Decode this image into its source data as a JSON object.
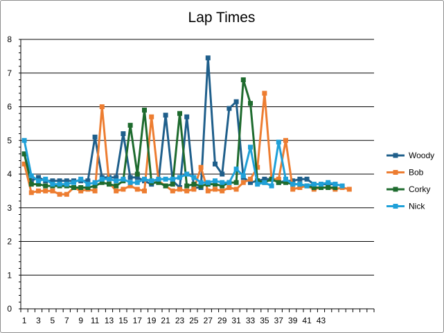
{
  "chart_data": {
    "type": "line",
    "title": "Lap Times",
    "xlabel": "",
    "ylabel": "",
    "ylim": [
      0,
      8
    ],
    "yticks": [
      0,
      1,
      2,
      3,
      4,
      5,
      6,
      7,
      8
    ],
    "x": [
      1,
      2,
      3,
      4,
      5,
      6,
      7,
      8,
      9,
      10,
      11,
      12,
      13,
      14,
      15,
      16,
      17,
      18,
      19,
      20,
      21,
      22,
      23,
      24,
      25,
      26,
      27,
      28,
      29,
      30,
      31,
      32,
      33,
      34,
      35,
      36,
      37,
      38,
      39,
      40,
      41,
      42,
      43,
      44,
      45,
      46,
      47,
      48,
      49,
      50
    ],
    "xtick_labels": [
      "1",
      "3",
      "5",
      "7",
      "9",
      "11",
      "13",
      "15",
      "17",
      "19",
      "21",
      "23",
      "25",
      "27",
      "29",
      "31",
      "33",
      "35",
      "37",
      "39",
      "41",
      "43"
    ],
    "grid": "horizontal",
    "legend_position": "right",
    "series": [
      {
        "name": "Woody",
        "color": "#1f5f8b",
        "values": [
          4.6,
          3.8,
          3.9,
          3.8,
          3.8,
          3.8,
          3.8,
          3.8,
          3.8,
          3.8,
          5.1,
          3.9,
          3.9,
          3.9,
          5.2,
          3.9,
          3.9,
          3.8,
          3.7,
          3.8,
          5.75,
          3.8,
          3.6,
          5.7,
          3.6,
          3.6,
          7.45,
          4.3,
          4.0,
          5.95,
          6.15,
          3.9,
          3.75,
          3.8,
          3.85,
          3.85,
          3.75,
          3.8,
          3.8,
          3.85,
          3.85,
          3.7,
          3.7,
          3.7,
          3.7,
          null,
          null,
          null,
          null,
          null
        ]
      },
      {
        "name": "Bob",
        "color": "#ed7d31",
        "values": [
          4.3,
          3.45,
          3.5,
          3.5,
          3.5,
          3.4,
          3.4,
          3.6,
          3.5,
          3.55,
          3.5,
          6.0,
          3.75,
          3.5,
          3.55,
          3.65,
          3.55,
          3.5,
          5.7,
          3.8,
          3.65,
          3.5,
          3.55,
          3.5,
          3.55,
          4.2,
          3.5,
          3.55,
          3.5,
          3.6,
          3.55,
          3.75,
          3.85,
          4.2,
          6.4,
          3.85,
          3.85,
          5.0,
          3.55,
          3.6,
          3.65,
          3.55,
          3.6,
          3.6,
          3.55,
          3.6,
          3.55,
          null,
          null,
          null
        ]
      },
      {
        "name": "Corky",
        "color": "#1e6b2e",
        "values": [
          4.6,
          3.7,
          3.7,
          3.65,
          3.65,
          3.65,
          3.65,
          3.6,
          3.6,
          3.6,
          3.65,
          3.75,
          3.7,
          3.65,
          3.8,
          5.45,
          4.0,
          5.9,
          3.75,
          3.75,
          3.65,
          3.7,
          5.8,
          3.65,
          3.7,
          3.65,
          3.7,
          3.7,
          3.65,
          3.75,
          3.75,
          6.8,
          6.1,
          3.8,
          3.75,
          3.85,
          3.75,
          3.75,
          3.7,
          3.7,
          3.65,
          3.6,
          3.6,
          3.6,
          3.6,
          null,
          null,
          null,
          null,
          null
        ]
      },
      {
        "name": "Nick",
        "color": "#1fa0d8",
        "values": [
          5.0,
          3.95,
          3.8,
          3.85,
          3.7,
          3.7,
          3.7,
          3.75,
          3.85,
          3.7,
          3.75,
          3.85,
          3.85,
          3.8,
          3.85,
          3.75,
          3.75,
          3.85,
          3.8,
          3.85,
          3.85,
          3.85,
          3.9,
          4.0,
          3.9,
          3.75,
          3.75,
          3.8,
          3.75,
          3.75,
          4.15,
          3.95,
          4.8,
          3.7,
          3.75,
          3.65,
          4.95,
          3.85,
          3.7,
          3.7,
          3.65,
          3.7,
          3.7,
          3.75,
          3.7,
          3.65,
          null,
          null,
          null,
          null
        ]
      }
    ]
  }
}
